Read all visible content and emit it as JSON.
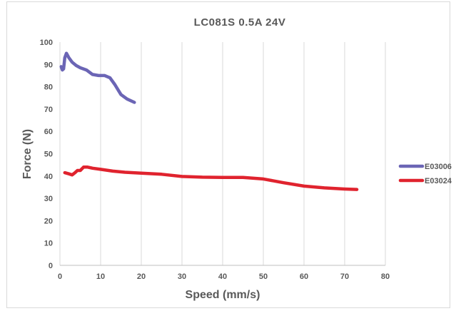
{
  "chart_data": {
    "type": "line",
    "title": "LC081S  0.5A  24V",
    "xlabel": "Speed (mm/s)",
    "ylabel": "Force (N)",
    "xlim": [
      0,
      80
    ],
    "ylim": [
      0,
      100
    ],
    "xticks": [
      "0",
      "10",
      "20",
      "30",
      "40",
      "50",
      "60",
      "70",
      "80"
    ],
    "yticks": [
      "0",
      "10",
      "20",
      "30",
      "40",
      "50",
      "60",
      "70",
      "80",
      "90",
      "100"
    ],
    "grid": "vertical",
    "legend_position": "right",
    "series": [
      {
        "name": "E03006",
        "color": "#6b65b5",
        "points": [
          [
            0.3,
            89
          ],
          [
            0.6,
            87.5
          ],
          [
            0.9,
            88
          ],
          [
            1.2,
            93
          ],
          [
            1.6,
            95
          ],
          [
            2.2,
            93
          ],
          [
            3,
            91
          ],
          [
            4,
            89.5
          ],
          [
            5,
            88.5
          ],
          [
            6.5,
            87.5
          ],
          [
            8,
            85.5
          ],
          [
            9.5,
            85
          ],
          [
            11,
            85
          ],
          [
            12.3,
            84
          ],
          [
            13.5,
            81
          ],
          [
            15,
            76.5
          ],
          [
            16.5,
            74.5
          ],
          [
            18.3,
            73
          ]
        ]
      },
      {
        "name": "E03024",
        "color": "#e0232e",
        "points": [
          [
            1.2,
            41.5
          ],
          [
            2.2,
            41
          ],
          [
            3,
            40.5
          ],
          [
            3.7,
            41.5
          ],
          [
            4.3,
            42.5
          ],
          [
            5,
            42.5
          ],
          [
            5.8,
            44
          ],
          [
            6.8,
            44
          ],
          [
            8,
            43.5
          ],
          [
            10,
            43
          ],
          [
            13,
            42.2
          ],
          [
            16,
            41.7
          ],
          [
            20,
            41.3
          ],
          [
            25,
            40.8
          ],
          [
            30,
            39.8
          ],
          [
            35,
            39.5
          ],
          [
            40,
            39.4
          ],
          [
            45,
            39.4
          ],
          [
            50,
            38.7
          ],
          [
            55,
            37
          ],
          [
            60,
            35.5
          ],
          [
            65,
            34.7
          ],
          [
            70,
            34.2
          ],
          [
            73,
            34
          ]
        ]
      }
    ]
  }
}
